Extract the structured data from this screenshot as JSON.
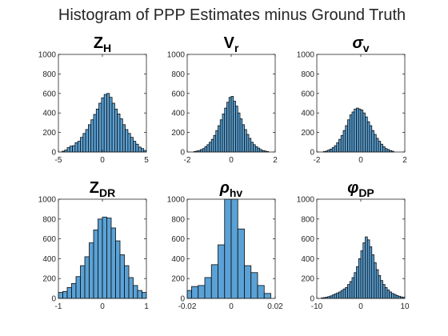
{
  "figure": {
    "title": "Histogram of PPP Estimates minus Ground Truth"
  },
  "colors": {
    "bar_fill": "#5aa2d6",
    "bar_edge": "#0b0b0b",
    "axis": "#262626"
  },
  "chart_data": [
    {
      "type": "bar",
      "title_main": "Z",
      "title_sub": "H",
      "title_greek": false,
      "xlim": [
        -5,
        5
      ],
      "ylim": [
        0,
        1000
      ],
      "xticks": [
        "-5",
        "0",
        "5"
      ],
      "yticks": [
        "0",
        "200",
        "400",
        "600",
        "800",
        "1000"
      ],
      "bin_start": -4.6,
      "bin_width": 0.3,
      "values": [
        8,
        20,
        45,
        60,
        65,
        95,
        110,
        150,
        190,
        230,
        280,
        330,
        385,
        440,
        500,
        555,
        590,
        600,
        560,
        500,
        440,
        390,
        340,
        280,
        230,
        190,
        150,
        110,
        80,
        50,
        35,
        15
      ]
    },
    {
      "type": "bar",
      "title_main": "V",
      "title_sub": "r",
      "title_greek": false,
      "xlim": [
        -2,
        2
      ],
      "ylim": [
        0,
        1000
      ],
      "xticks": [
        "-2",
        "0",
        "2"
      ],
      "yticks": [
        "0",
        "200",
        "400",
        "600",
        "800",
        "1000"
      ],
      "bin_start": -1.7,
      "bin_width": 0.1,
      "values": [
        5,
        10,
        15,
        25,
        35,
        55,
        75,
        100,
        130,
        170,
        220,
        270,
        330,
        390,
        450,
        510,
        560,
        570,
        520,
        470,
        400,
        340,
        280,
        230,
        180,
        140,
        100,
        75,
        55,
        40,
        25,
        15,
        10,
        5
      ]
    },
    {
      "type": "bar",
      "title_main": "σ",
      "title_sub": "v",
      "title_greek": true,
      "xlim": [
        -2,
        2
      ],
      "ylim": [
        0,
        1000
      ],
      "xticks": [
        "-2",
        "0",
        "2"
      ],
      "yticks": [
        "0",
        "200",
        "400",
        "600",
        "800",
        "1000"
      ],
      "bin_start": -1.7,
      "bin_width": 0.1,
      "values": [
        5,
        10,
        20,
        30,
        45,
        65,
        95,
        130,
        170,
        220,
        270,
        330,
        380,
        410,
        440,
        450,
        440,
        430,
        400,
        360,
        310,
        270,
        220,
        180,
        140,
        110,
        80,
        55,
        35,
        25,
        15,
        8
      ]
    },
    {
      "type": "bar",
      "title_main": "Z",
      "title_sub": "DR",
      "title_greek": false,
      "xlim": [
        -1,
        1
      ],
      "ylim": [
        0,
        1000
      ],
      "xticks": [
        "-1",
        "0",
        "1"
      ],
      "yticks": [
        "0",
        "200",
        "400",
        "600",
        "800",
        "1000"
      ],
      "bin_start": -1.0,
      "bin_width": 0.1,
      "values": [
        60,
        70,
        110,
        150,
        220,
        330,
        420,
        560,
        690,
        800,
        820,
        810,
        710,
        580,
        440,
        330,
        210,
        130,
        80,
        60
      ]
    },
    {
      "type": "bar",
      "title_main": "ρ",
      "title_sub": "hv",
      "title_greek": true,
      "xlim": [
        -0.02,
        0.02
      ],
      "ylim": [
        0,
        1000
      ],
      "xticks": [
        "-0.02",
        "0",
        "0.02"
      ],
      "yticks": [
        "0",
        "200",
        "400",
        "600",
        "800",
        "1000"
      ],
      "bin_start": -0.021,
      "bin_width": 0.003,
      "values": [
        80,
        120,
        130,
        210,
        340,
        540,
        1000,
        1000,
        700,
        330,
        260,
        130,
        50
      ]
    },
    {
      "type": "bar",
      "title_main": "φ",
      "title_sub": "DP",
      "title_greek": true,
      "xlim": [
        -10,
        10
      ],
      "ylim": [
        0,
        1000
      ],
      "xticks": [
        "-10",
        "0",
        "10"
      ],
      "yticks": [
        "0",
        "200",
        "400",
        "600",
        "800",
        "1000"
      ],
      "bin_start": -9.0,
      "bin_width": 0.5,
      "values": [
        5,
        8,
        12,
        18,
        25,
        35,
        45,
        55,
        65,
        80,
        95,
        110,
        140,
        170,
        210,
        260,
        320,
        400,
        480,
        560,
        620,
        590,
        520,
        440,
        360,
        290,
        230,
        180,
        140,
        110,
        85,
        65,
        50,
        40,
        30,
        22,
        15,
        10
      ]
    }
  ]
}
